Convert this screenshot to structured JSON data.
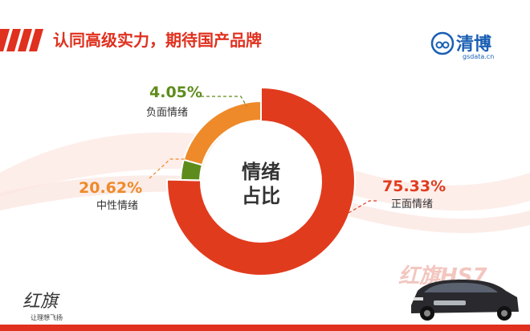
{
  "header": {
    "title": "认同高级实力，期待国产品牌"
  },
  "brand": {
    "name": "清博",
    "domain": "gsdata.cn"
  },
  "chart_data": {
    "type": "pie",
    "center_label_line1": "情绪",
    "center_label_line2": "占比",
    "slices": [
      {
        "label": "正面情绪",
        "value": 75.33,
        "display": "75.33%",
        "color": "#e13b1e"
      },
      {
        "label": "负面情绪",
        "value": 4.05,
        "display": "4.05%",
        "color": "#5e8c1c"
      },
      {
        "label": "中性情绪",
        "value": 20.62,
        "display": "20.62%",
        "color": "#ee8a2a"
      }
    ]
  },
  "footer": {
    "watermark": "红旗HS7",
    "signature": "红旗",
    "slogan": "让理想飞扬"
  },
  "colors": {
    "accent": "#e0301e",
    "brand_blue": "#1a5fb4"
  }
}
